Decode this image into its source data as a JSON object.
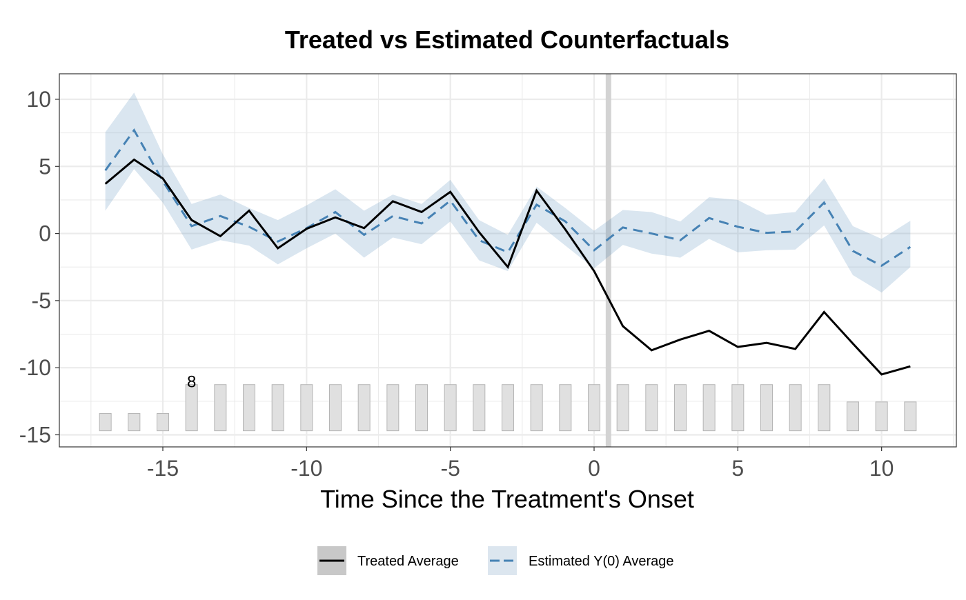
{
  "chart_data": {
    "type": "line",
    "title": "Treated vs Estimated Counterfactuals",
    "xlabel": "Time Since the Treatment's Onset",
    "ylabel": "",
    "xlim": [
      -18.6,
      12.6
    ],
    "ylim": [
      -15.9,
      11.9
    ],
    "xticks": [
      -15,
      -10,
      -5,
      0,
      5,
      10
    ],
    "xtick_labels": [
      "-15",
      "-10",
      "-5",
      "0",
      "5",
      "10"
    ],
    "yticks": [
      10,
      5,
      0,
      -5,
      -10,
      -15
    ],
    "ytick_labels": [
      "10",
      "5",
      "0",
      "-5",
      "-10",
      "-15"
    ],
    "grid": true,
    "treatment_line_x": 0.5,
    "x": [
      -17,
      -16,
      -15,
      -14,
      -13,
      -12,
      -11,
      -10,
      -9,
      -8,
      -7,
      -6,
      -5,
      -4,
      -3,
      -2,
      -1,
      0,
      1,
      2,
      3,
      4,
      5,
      6,
      7,
      8,
      9,
      10,
      11
    ],
    "series": [
      {
        "name": "Treated Average",
        "color": "#000000",
        "style": "solid",
        "values": [
          3.7,
          5.5,
          4.1,
          1.0,
          -0.2,
          1.7,
          -1.1,
          0.35,
          1.2,
          0.4,
          2.4,
          1.6,
          3.1,
          0.1,
          -2.5,
          3.2,
          0.3,
          -2.8,
          -6.9,
          -8.7,
          -7.9,
          -7.25,
          -8.45,
          -8.15,
          -8.6,
          -5.85,
          -8.2,
          -10.5,
          -9.9
        ]
      },
      {
        "name": "Estimated Y(0) Average",
        "color": "#4682B4",
        "style": "dashed",
        "values": [
          4.7,
          7.7,
          3.9,
          0.55,
          1.3,
          0.5,
          -0.6,
          0.4,
          1.6,
          -0.1,
          1.3,
          0.75,
          2.45,
          -0.5,
          -1.4,
          2.15,
          0.9,
          -1.25,
          0.45,
          0.0,
          -0.5,
          1.15,
          0.5,
          0.05,
          0.15,
          2.3,
          -1.3,
          -2.4,
          -1.0
        ],
        "ci_lower": [
          1.7,
          4.8,
          2.3,
          -1.2,
          -0.5,
          -0.9,
          -2.3,
          -1.1,
          0.0,
          -1.8,
          -0.3,
          -0.8,
          0.9,
          -2.0,
          -2.8,
          0.8,
          -0.9,
          -2.6,
          -0.85,
          -1.5,
          -1.8,
          -0.4,
          -1.4,
          -1.25,
          -1.2,
          0.6,
          -3.1,
          -4.4,
          -2.5
        ],
        "ci_upper": [
          7.55,
          10.5,
          5.9,
          2.2,
          2.9,
          1.9,
          1.0,
          2.1,
          3.3,
          1.7,
          2.9,
          2.2,
          4.0,
          1.0,
          -0.1,
          3.5,
          1.9,
          0.2,
          1.75,
          1.6,
          0.9,
          2.7,
          2.5,
          1.4,
          1.6,
          4.1,
          0.55,
          -0.4,
          0.95
        ]
      }
    ],
    "counts": [
      3,
      3,
      3,
      8,
      8,
      8,
      8,
      8,
      8,
      8,
      8,
      8,
      8,
      8,
      8,
      8,
      8,
      8,
      8,
      8,
      8,
      8,
      8,
      8,
      8,
      8,
      5,
      5,
      5
    ],
    "count_label": "8",
    "count_label_x": -14,
    "legend": {
      "placement": "bottom",
      "entries": [
        "Treated Average",
        "Estimated Y(0) Average"
      ]
    }
  }
}
